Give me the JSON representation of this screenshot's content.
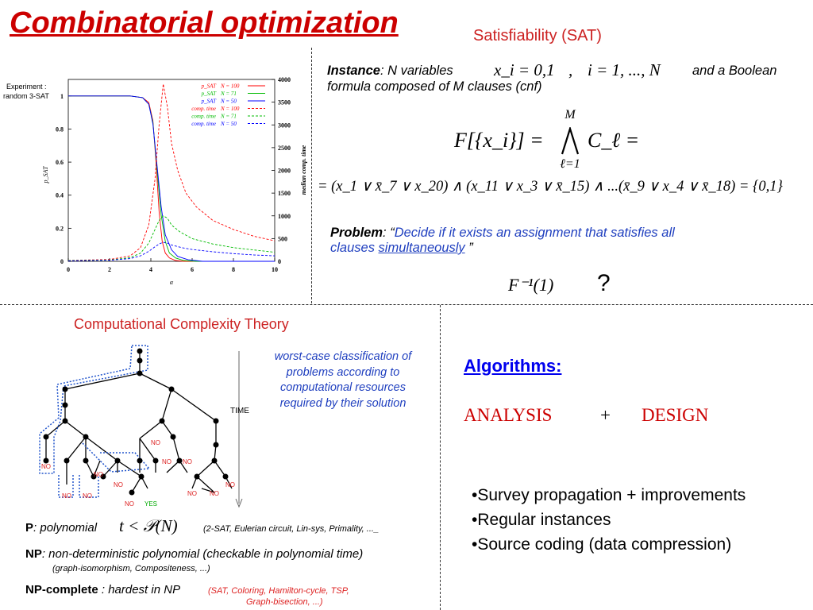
{
  "title": "Combinatorial optimization",
  "sat": {
    "heading": "Satisfiability (SAT)",
    "instance_label": "Instance",
    "instance_text1": ": N variables",
    "var_math": "x_i = 0,1",
    "comma": ",",
    "index_math": "i = 1, ..., N",
    "instance_text2": "and a Boolean",
    "instance_text3": "formula composed of M clauses (cnf)",
    "formula_lhs": "F[{x_i}] =",
    "formula_op_top": "M",
    "formula_op_bottom": "ℓ=1",
    "formula_rhs": "C_ℓ =",
    "clause_line": "= (x_1 ∨ x̄_7 ∨ x_20) ∧ (x_11 ∨ x_3 ∨ x̄_15) ∧ ...(x̄_9 ∨ x_4 ∨ x̄_18) = {0,1}",
    "problem_label": "Problem",
    "problem_colon": ": “",
    "problem_text1": "Decide if it exists an assignment  that satisfies all",
    "problem_text2a": "clauses ",
    "problem_text2b": "simultaneously",
    "problem_text2c": " ”",
    "inverse": "F⁻¹(1)",
    "question": "?"
  },
  "chart_data": {
    "type": "line",
    "experiment_label_1": "Experiment :",
    "experiment_label_2": "random 3-SAT",
    "xlabel": "α",
    "ylabel": "p_SAT",
    "y2label": "median comp. time",
    "xlim": [
      0,
      10
    ],
    "ylim": [
      0,
      1.1
    ],
    "y2lim": [
      0,
      4000
    ],
    "xticks": [
      "0",
      "2",
      "4",
      "6",
      "8",
      "10"
    ],
    "yticks": [
      "0",
      "0.2",
      "0.4",
      "0.6",
      "0.8",
      "1"
    ],
    "y2ticks": [
      "0",
      "500",
      "1000",
      "1500",
      "2000",
      "2500",
      "3000",
      "3500",
      "4000"
    ],
    "legend": [
      {
        "label": "p_SAT",
        "n": "N = 100",
        "color": "#ff0000",
        "style": "solid"
      },
      {
        "label": "p_SAT",
        "n": "N =  71",
        "color": "#00bb00",
        "style": "solid"
      },
      {
        "label": "p_SAT",
        "n": "N =  50",
        "color": "#0000ff",
        "style": "solid"
      },
      {
        "label": "comp. time",
        "n": "N = 100",
        "color": "#ff0000",
        "style": "dashed"
      },
      {
        "label": "comp. time",
        "n": "N =  71",
        "color": "#00bb00",
        "style": "dashed"
      },
      {
        "label": "comp. time",
        "n": "N =  50",
        "color": "#0000ff",
        "style": "dashed"
      }
    ],
    "series": [
      {
        "name": "p_SAT N = 100",
        "color": "#ff0000",
        "axis": "left",
        "dash": false,
        "x": [
          0,
          3,
          3.6,
          3.9,
          4.1,
          4.25,
          4.4,
          4.55,
          4.7,
          4.9,
          5.2,
          5.6,
          6.5,
          10
        ],
        "y": [
          1,
          1,
          0.99,
          0.96,
          0.85,
          0.6,
          0.3,
          0.12,
          0.05,
          0.02,
          0.005,
          0,
          0,
          0
        ]
      },
      {
        "name": "p_SAT N = 71",
        "color": "#00bb00",
        "axis": "left",
        "dash": false,
        "x": [
          0,
          3,
          3.6,
          3.9,
          4.1,
          4.3,
          4.5,
          4.7,
          4.9,
          5.2,
          5.6,
          6.2,
          10
        ],
        "y": [
          1,
          1,
          0.99,
          0.95,
          0.84,
          0.55,
          0.28,
          0.12,
          0.05,
          0.02,
          0.005,
          0,
          0
        ]
      },
      {
        "name": "p_SAT N = 50",
        "color": "#0000ff",
        "axis": "left",
        "dash": false,
        "x": [
          0,
          3,
          3.6,
          3.9,
          4.1,
          4.3,
          4.5,
          4.7,
          5.0,
          5.3,
          5.8,
          6.5,
          10
        ],
        "y": [
          1,
          1,
          0.99,
          0.95,
          0.83,
          0.58,
          0.33,
          0.16,
          0.07,
          0.03,
          0.01,
          0,
          0
        ]
      },
      {
        "name": "comp. time N = 100",
        "color": "#ff0000",
        "axis": "right",
        "dash": true,
        "x": [
          0,
          2,
          3,
          3.5,
          3.9,
          4.2,
          4.4,
          4.6,
          4.8,
          5.0,
          5.3,
          5.7,
          6.2,
          7,
          8,
          9,
          10
        ],
        "y": [
          20,
          40,
          120,
          300,
          800,
          1800,
          3000,
          3900,
          3400,
          2600,
          2000,
          1500,
          1200,
          900,
          700,
          550,
          450
        ]
      },
      {
        "name": "comp. time N = 71",
        "color": "#00bb00",
        "axis": "right",
        "dash": true,
        "x": [
          0,
          2,
          3,
          3.5,
          3.9,
          4.2,
          4.4,
          4.6,
          4.8,
          5.0,
          5.4,
          6,
          7,
          8,
          9,
          10
        ],
        "y": [
          15,
          30,
          80,
          180,
          400,
          700,
          900,
          1000,
          950,
          800,
          650,
          500,
          380,
          300,
          250,
          200
        ]
      },
      {
        "name": "comp. time N = 50",
        "color": "#0000ff",
        "axis": "right",
        "dash": true,
        "x": [
          0,
          2,
          3,
          3.5,
          3.9,
          4.2,
          4.4,
          4.6,
          4.8,
          5.0,
          5.5,
          6,
          7,
          8,
          9,
          10
        ],
        "y": [
          10,
          25,
          60,
          120,
          220,
          320,
          380,
          420,
          400,
          360,
          300,
          260,
          210,
          170,
          140,
          120
        ]
      }
    ]
  },
  "complexity": {
    "heading": "Computational Complexity Theory",
    "note1": "worst-case classification of",
    "note2": "problems according to",
    "note3": "computational resources",
    "note4": "required by their solution",
    "time_label": "TIME",
    "no_label": "NO",
    "yes_label": "YES",
    "p_label": "P",
    "p_text": ":  polynomial",
    "p_math": "t < 𝒫(N)",
    "p_examples": "(2-SAT, Eulerian circuit, Lin-sys, Primality, ..._",
    "np_label": "NP",
    "np_text": ":  non-deterministic polynomial  (checkable in polynomial time)",
    "np_examples": "(graph-isomorphism, Compositeness, ...)",
    "npc_label": "NP-complete",
    "npc_text": " :  hardest in NP",
    "npc_examples1": "(SAT, Coloring, Hamilton-cycle, TSP,",
    "npc_examples2": "Graph-bisection, ...)"
  },
  "algorithms": {
    "heading": "Algorithms:",
    "analysis": "ANALYSIS",
    "plus": "+",
    "design": "DESIGN",
    "bullets": [
      "•Survey propagation + improvements",
      "•Regular instances",
      "•Source coding (data compression)"
    ]
  },
  "colors": {
    "title_red": "#cc0000",
    "heading_red": "#cc2222",
    "blue": "#1f3fbf",
    "link_blue": "#0000ee",
    "green": "#00bb00"
  }
}
